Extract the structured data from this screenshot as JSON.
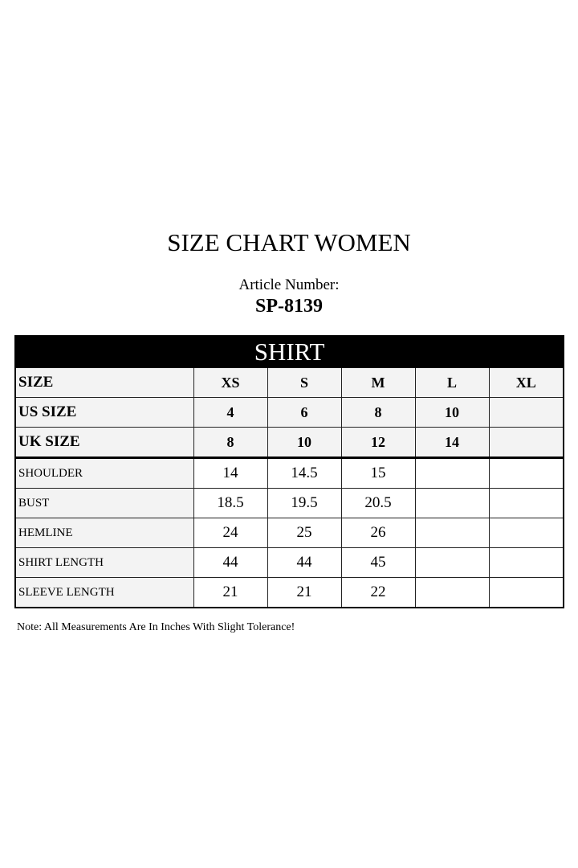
{
  "title": "SIZE CHART WOMEN",
  "article_label": "Article Number:",
  "article_number": "SP-8139",
  "table": {
    "section": "SHIRT",
    "header_rows": [
      {
        "label": "SIZE",
        "values": [
          "XS",
          "S",
          "M",
          "L",
          "XL"
        ]
      },
      {
        "label": "US SIZE",
        "values": [
          "4",
          "6",
          "8",
          "10",
          ""
        ]
      },
      {
        "label": "UK SIZE",
        "values": [
          "8",
          "10",
          "12",
          "14",
          ""
        ]
      }
    ],
    "measurement_rows": [
      {
        "label": "SHOULDER",
        "values": [
          "14",
          "14.5",
          "15",
          "",
          ""
        ]
      },
      {
        "label": "BUST",
        "values": [
          "18.5",
          "19.5",
          "20.5",
          "",
          ""
        ]
      },
      {
        "label": "HEMLINE",
        "values": [
          "24",
          "25",
          "26",
          "",
          ""
        ]
      },
      {
        "label": "SHIRT LENGTH",
        "values": [
          "44",
          "44",
          "45",
          "",
          ""
        ]
      },
      {
        "label": "SLEEVE LENGTH",
        "values": [
          "21",
          "21",
          "22",
          "",
          ""
        ]
      }
    ]
  },
  "note": "Note: All Measurements Are In Inches With Slight Tolerance!"
}
